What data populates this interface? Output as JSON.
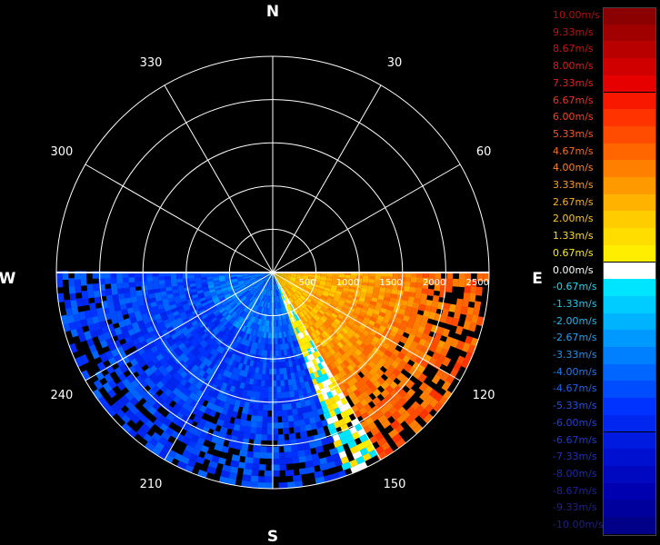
{
  "chart_data": {
    "type": "heatmap",
    "subtype": "polar-radial-velocity-ppi",
    "compass": {
      "north": "N",
      "south": "S",
      "east": "E",
      "west": "W"
    },
    "azimuth_tick_labels": [
      {
        "deg": 30,
        "label": "30"
      },
      {
        "deg": 60,
        "label": "60"
      },
      {
        "deg": 120,
        "label": "120"
      },
      {
        "deg": 150,
        "label": "150"
      },
      {
        "deg": 210,
        "label": "210"
      },
      {
        "deg": 240,
        "label": "240"
      },
      {
        "deg": 300,
        "label": "300"
      },
      {
        "deg": 330,
        "label": "330"
      }
    ],
    "range_rings": [
      500,
      1000,
      1500,
      2000,
      2500
    ],
    "range_tick_labels": [
      "500",
      "1000",
      "1500",
      "2000",
      "2500"
    ],
    "azimuth_spokes_deg": [
      0,
      30,
      60,
      90,
      120,
      150,
      180,
      210,
      240,
      270,
      300,
      330
    ],
    "max_range": 2500,
    "scan_sector_deg": [
      90,
      270
    ],
    "velocity_zones": [
      {
        "az_from": 90,
        "az_to": 150,
        "v_center": 3.5
      },
      {
        "az_from": 150,
        "az_to": 160,
        "v_center": 0.3
      },
      {
        "az_from": 160,
        "az_to": 270,
        "v_center": -5.0
      }
    ],
    "colorbar": {
      "unit": "m/s",
      "vmin": -10.0,
      "vmax": 10.0,
      "entries": [
        {
          "label": "10.00m/s",
          "color": "#8b0000",
          "text_color": "#b01010"
        },
        {
          "label": "9.33m/s",
          "color": "#a00000",
          "text_color": "#c01010"
        },
        {
          "label": "8.67m/s",
          "color": "#b80000",
          "text_color": "#d01010"
        },
        {
          "label": "8.00m/s",
          "color": "#d00000",
          "text_color": "#e01818"
        },
        {
          "label": "7.33m/s",
          "color": "#e60000",
          "text_color": "#e82020"
        },
        {
          "label": "6.67m/s",
          "color": "#f81800",
          "text_color": "#f03020"
        },
        {
          "label": "6.00m/s",
          "color": "#ff3300",
          "text_color": "#f84020"
        },
        {
          "label": "5.33m/s",
          "color": "#ff4c00",
          "text_color": "#ff5520"
        },
        {
          "label": "4.67m/s",
          "color": "#ff6600",
          "text_color": "#ff6a20"
        },
        {
          "label": "4.00m/s",
          "color": "#ff8000",
          "text_color": "#ff8020"
        },
        {
          "label": "3.33m/s",
          "color": "#ff9900",
          "text_color": "#ff9a20"
        },
        {
          "label": "2.67m/s",
          "color": "#ffb300",
          "text_color": "#ffb020"
        },
        {
          "label": "2.00m/s",
          "color": "#ffcc00",
          "text_color": "#ffc820"
        },
        {
          "label": "1.33m/s",
          "color": "#ffdd00",
          "text_color": "#ffda20"
        },
        {
          "label": "0.67m/s",
          "color": "#ffee00",
          "text_color": "#ffea20"
        },
        {
          "label": "0.00m/s",
          "color": "#ffffff",
          "text_color": "#ffffff"
        },
        {
          "label": "-0.67m/s",
          "color": "#00e5ff",
          "text_color": "#20d8f0"
        },
        {
          "label": "-1.33m/s",
          "color": "#00ccff",
          "text_color": "#20c8f0"
        },
        {
          "label": "-2.00m/s",
          "color": "#00b3ff",
          "text_color": "#20b8f0"
        },
        {
          "label": "-2.67m/s",
          "color": "#0099ff",
          "text_color": "#20a0f0"
        },
        {
          "label": "-3.33m/s",
          "color": "#0080ff",
          "text_color": "#2090f0"
        },
        {
          "label": "-4.00m/s",
          "color": "#0066ff",
          "text_color": "#2078f0"
        },
        {
          "label": "-4.67m/s",
          "color": "#004cff",
          "text_color": "#2060f0"
        },
        {
          "label": "-5.33m/s",
          "color": "#0033ff",
          "text_color": "#2050e8"
        },
        {
          "label": "-6.00m/s",
          "color": "#0026f0",
          "text_color": "#2040e0"
        },
        {
          "label": "-6.67m/s",
          "color": "#001ae0",
          "text_color": "#2038d0"
        },
        {
          "label": "-7.33m/s",
          "color": "#0010d0",
          "text_color": "#2030c0"
        },
        {
          "label": "-8.00m/s",
          "color": "#0008c0",
          "text_color": "#2028b0"
        },
        {
          "label": "-8.67m/s",
          "color": "#0000b0",
          "text_color": "#2020a0"
        },
        {
          "label": "-9.33m/s",
          "color": "#00009c",
          "text_color": "#202090"
        },
        {
          "label": "-10.00m/s",
          "color": "#000088",
          "text_color": "#202080"
        }
      ]
    }
  }
}
